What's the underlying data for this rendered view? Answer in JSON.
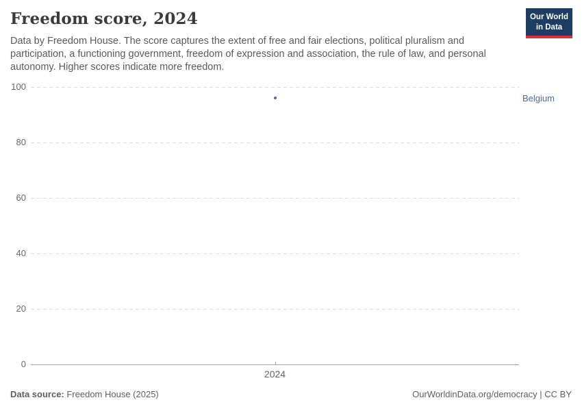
{
  "header": {
    "title": "Freedom score, 2024",
    "subtitle": "Data by Freedom House. The score captures the extent of free and fair elections, political pluralism and participation, a functioning government, freedom of expression and association, the rule of law, and personal autonomy. Higher scores indicate more freedom.",
    "logo": {
      "line1": "Our World",
      "line2": "in Data",
      "background_color": "#1d3d63",
      "accent_color": "#d4342c"
    }
  },
  "chart_data": {
    "type": "line",
    "title": "Freedom score, 2024",
    "x": [
      2024
    ],
    "series": [
      {
        "name": "Belgium",
        "values": [
          96
        ],
        "color": "#4c6a9c"
      }
    ],
    "ylim": [
      0,
      100
    ],
    "yticks": [
      0,
      20,
      40,
      60,
      80,
      100
    ],
    "xtick_labels": [
      "2024"
    ],
    "grid": "horizontal-dashed",
    "legend_position": "right-of-last-point"
  },
  "footer": {
    "source_label": "Data source:",
    "source_value": " Freedom House (2025)",
    "right_text": "OurWorldinData.org/democracy | CC BY"
  },
  "colors": {
    "title_text": "#3b3b3b",
    "subtitle_text": "#5a5a5a",
    "tick_text": "#666666",
    "gridline": "#dcdcdc",
    "axis_line": "#a3a3a3",
    "series_blue": "#4c6a9c",
    "footer_text": "#5e5e5e"
  }
}
